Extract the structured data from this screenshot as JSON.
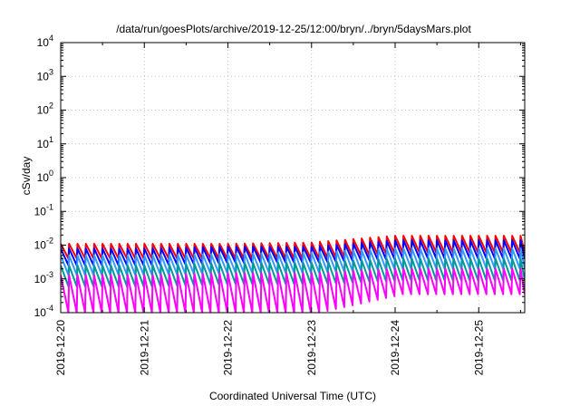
{
  "chart_data": {
    "type": "line",
    "title": "/data/run/goesPlots/archive/2019-12-25/12:00/bryn/../bryn/5daysMars.plot",
    "xlabel": "Coordinated Universal Time (UTC)",
    "ylabel": "cSv/day",
    "yscale": "log",
    "ylim": [
      0.0001,
      10000
    ],
    "xlim": [
      0,
      5.55
    ],
    "x_unit": "days since 2019-12-20",
    "grid": true,
    "x_ticks": [
      {
        "x": 0,
        "label": "2019-12-20"
      },
      {
        "x": 1,
        "label": "2019-12-21"
      },
      {
        "x": 2,
        "label": "2019-12-22"
      },
      {
        "x": 3,
        "label": "2019-12-23"
      },
      {
        "x": 4,
        "label": "2019-12-24"
      },
      {
        "x": 5,
        "label": "2019-12-25"
      }
    ],
    "y_ticks": [
      {
        "exp": "-4"
      },
      {
        "exp": "-3"
      },
      {
        "exp": "-2"
      },
      {
        "exp": "-1"
      },
      {
        "exp": "0"
      },
      {
        "exp": "1"
      },
      {
        "exp": "2"
      },
      {
        "exp": "3"
      },
      {
        "exp": "4"
      }
    ],
    "y_tick_base": "10",
    "sawtooth_period_days": 0.1,
    "series": [
      {
        "color": "#ff0000",
        "peaks": [
          0.011,
          0.011,
          0.011,
          0.012,
          0.019
        ],
        "troughs": [
          0.004,
          0.004,
          0.004,
          0.004,
          0.006
        ]
      },
      {
        "color": "#0000ff",
        "peaks": [
          0.008,
          0.008,
          0.009,
          0.009,
          0.014
        ],
        "troughs": [
          0.0025,
          0.0025,
          0.003,
          0.003,
          0.004
        ]
      },
      {
        "color": "#3399ff",
        "peaks": [
          0.005,
          0.005,
          0.0055,
          0.006,
          0.008
        ],
        "troughs": [
          0.0013,
          0.0013,
          0.0015,
          0.0015,
          0.002
        ]
      },
      {
        "color": "#009999",
        "peaks": [
          0.0025,
          0.0025,
          0.003,
          0.003,
          0.004
        ],
        "troughs": [
          0.0006,
          0.0006,
          0.0007,
          0.0007,
          0.0009
        ]
      },
      {
        "color": "#ff00ff",
        "peaks": [
          0.0013,
          0.0013,
          0.0015,
          0.0015,
          0.002
        ],
        "troughs": [
          0.0001,
          0.0001,
          0.0001,
          0.0001,
          0.00035
        ]
      }
    ]
  }
}
